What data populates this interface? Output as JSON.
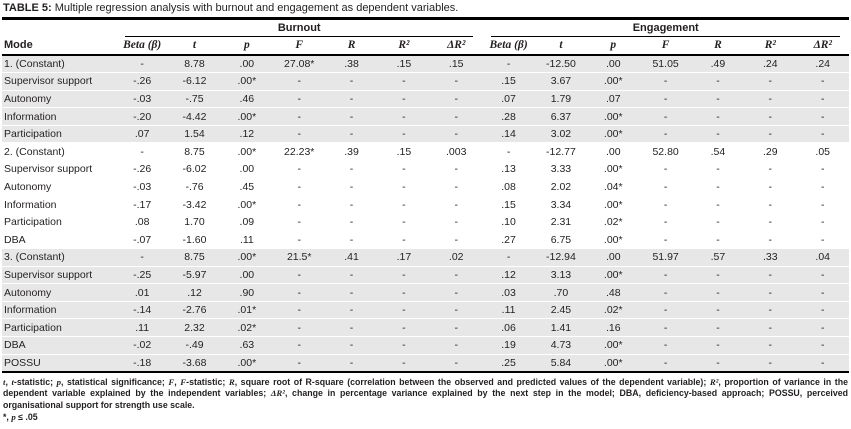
{
  "title": {
    "label": "TABLE 5:",
    "text": " Multiple regression analysis with burnout and engagement as dependent variables."
  },
  "table": {
    "mode_header": "Mode",
    "groups": [
      {
        "label": "Burnout"
      },
      {
        "label": "Engagement"
      }
    ],
    "stat_headers": [
      "Beta (β)",
      "t",
      "p",
      "F",
      "R",
      "R²",
      "ΔR²"
    ],
    "shaded_row_color": "#e7e7e8",
    "rows": [
      {
        "label": "1. (Constant)",
        "shaded": true,
        "burnout": [
          "-",
          "8.78",
          ".00",
          "27.08*",
          ".38",
          ".15",
          ".15"
        ],
        "engagement": [
          "-",
          "-12.50",
          ".00",
          "51.05",
          ".49",
          ".24",
          ".24"
        ]
      },
      {
        "label": "Supervisor support",
        "shaded": true,
        "burnout": [
          "-.26",
          "-6.12",
          ".00*",
          "-",
          "-",
          "-",
          "-"
        ],
        "engagement": [
          ".15",
          "3.67",
          ".00*",
          "-",
          "-",
          "-",
          "-"
        ]
      },
      {
        "label": "Autonomy",
        "shaded": true,
        "burnout": [
          "-.03",
          "-.75",
          ".46",
          "-",
          "-",
          "-",
          "-"
        ],
        "engagement": [
          ".07",
          "1.79",
          ".07",
          "-",
          "-",
          "-",
          "-"
        ]
      },
      {
        "label": "Information",
        "shaded": true,
        "burnout": [
          "-.20",
          "-4.42",
          ".00*",
          "-",
          "-",
          "-",
          "-"
        ],
        "engagement": [
          ".28",
          "6.37",
          ".00*",
          "-",
          "-",
          "-",
          "-"
        ]
      },
      {
        "label": "Participation",
        "shaded": true,
        "burnout": [
          ".07",
          "1.54",
          ".12",
          "-",
          "-",
          "-",
          "-"
        ],
        "engagement": [
          ".14",
          "3.02",
          ".00*",
          "-",
          "-",
          "-",
          "-"
        ]
      },
      {
        "label": "2. (Constant)",
        "shaded": false,
        "burnout": [
          "-",
          "8.75",
          ".00*",
          "22.23*",
          ".39",
          ".15",
          ".003"
        ],
        "engagement": [
          "-",
          "-12.77",
          ".00",
          "52.80",
          ".54",
          ".29",
          ".05"
        ]
      },
      {
        "label": "Supervisor support",
        "shaded": false,
        "burnout": [
          "-.26",
          "-6.02",
          ".00",
          "-",
          "-",
          "-",
          "-"
        ],
        "engagement": [
          ".13",
          "3.33",
          ".00*",
          "-",
          "-",
          "-",
          "-"
        ]
      },
      {
        "label": "Autonomy",
        "shaded": false,
        "burnout": [
          "-.03",
          "-.76",
          ".45",
          "-",
          "-",
          "-",
          "-"
        ],
        "engagement": [
          ".08",
          "2.02",
          ".04*",
          "-",
          "-",
          "-",
          "-"
        ]
      },
      {
        "label": "Information",
        "shaded": false,
        "burnout": [
          "-.17",
          "-3.42",
          ".00*",
          "-",
          "-",
          "-",
          "-"
        ],
        "engagement": [
          ".15",
          "3.34",
          ".00*",
          "-",
          "-",
          "-",
          "-"
        ]
      },
      {
        "label": "Participation",
        "shaded": false,
        "burnout": [
          ".08",
          "1.70",
          ".09",
          "-",
          "-",
          "-",
          "-"
        ],
        "engagement": [
          ".10",
          "2.31",
          ".02*",
          "-",
          "-",
          "-",
          "-"
        ]
      },
      {
        "label": "DBA",
        "shaded": false,
        "burnout": [
          "-.07",
          "-1.60",
          ".11",
          "-",
          "-",
          "-",
          "-"
        ],
        "engagement": [
          ".27",
          "6.75",
          ".00*",
          "-",
          "-",
          "-",
          "-"
        ]
      },
      {
        "label": "3. (Constant)",
        "shaded": true,
        "burnout": [
          "-",
          "8.75",
          ".00*",
          "21.5*",
          ".41",
          ".17",
          ".02"
        ],
        "engagement": [
          "-",
          "-12.94",
          ".00",
          "51.97",
          ".57",
          ".33",
          ".04"
        ]
      },
      {
        "label": "Supervisor support",
        "shaded": true,
        "burnout": [
          "-.25",
          "-5.97",
          ".00",
          "-",
          "-",
          "-",
          "-"
        ],
        "engagement": [
          ".12",
          "3.13",
          ".00*",
          "-",
          "-",
          "-",
          "-"
        ]
      },
      {
        "label": "Autonomy",
        "shaded": true,
        "burnout": [
          ".01",
          ".12",
          ".90",
          "-",
          "-",
          "-",
          "-"
        ],
        "engagement": [
          ".03",
          ".70",
          ".48",
          "-",
          "-",
          "-",
          "-"
        ]
      },
      {
        "label": "Information",
        "shaded": true,
        "burnout": [
          "-.14",
          "-2.76",
          ".01*",
          "-",
          "-",
          "-",
          "-"
        ],
        "engagement": [
          ".11",
          "2.45",
          ".02*",
          "-",
          "-",
          "-",
          "-"
        ]
      },
      {
        "label": "Participation",
        "shaded": true,
        "burnout": [
          ".11",
          "2.32",
          ".02*",
          "-",
          "-",
          "-",
          "-"
        ],
        "engagement": [
          ".06",
          "1.41",
          ".16",
          "-",
          "-",
          "-",
          "-"
        ]
      },
      {
        "label": "DBA",
        "shaded": true,
        "burnout": [
          "-.02",
          "-.49",
          ".63",
          "-",
          "-",
          "-",
          "-"
        ],
        "engagement": [
          ".19",
          "4.73",
          ".00*",
          "-",
          "-",
          "-",
          "-"
        ]
      },
      {
        "label": "POSSU",
        "shaded": true,
        "burnout": [
          "-.18",
          "-3.68",
          ".00*",
          "-",
          "-",
          "-",
          "-"
        ],
        "engagement": [
          ".25",
          "5.84",
          ".00*",
          "-",
          "-",
          "-",
          "-"
        ]
      }
    ]
  },
  "footnote": {
    "segments": [
      {
        "text": "t",
        "i": true
      },
      {
        "text": ", "
      },
      {
        "text": "t",
        "i": true
      },
      {
        "text": "-statistic; "
      },
      {
        "text": "p",
        "i": true
      },
      {
        "text": ", statistical significance; "
      },
      {
        "text": "F",
        "i": true
      },
      {
        "text": ", "
      },
      {
        "text": "F",
        "i": true
      },
      {
        "text": "-statistic; "
      },
      {
        "text": "R",
        "i": true
      },
      {
        "text": ", square root of R-square (correlation between the observed and predicted values of the dependent variable); "
      },
      {
        "text": "R²",
        "i": true
      },
      {
        "text": ", proportion of variance in the dependent variable explained by the independent variables; "
      },
      {
        "text": "ΔR²",
        "i": true
      },
      {
        "text": ", change in percentage variance explained by the next step in the model; DBA, deficiency-based approach; POSSU, perceived organisational support for strength use scale."
      }
    ],
    "significance": [
      {
        "text": "*, "
      },
      {
        "text": "p",
        "i": true
      },
      {
        "text": " ≤ .05"
      }
    ]
  }
}
